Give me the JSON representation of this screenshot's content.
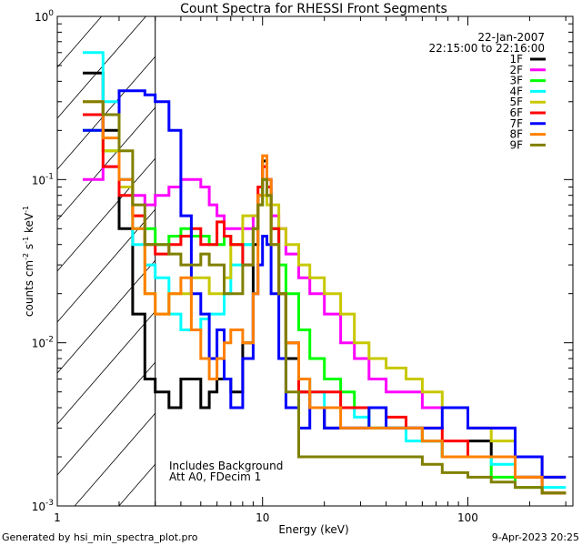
{
  "chart_data": {
    "type": "line",
    "title": "Count Spectra for RHESSI Front Segments",
    "xlabel": "Energy (keV)",
    "ylabel": "counts cm-2 s-1 keV-1",
    "ylabel_parts": {
      "base": "counts cm",
      "e1": "-2",
      "mid": " s",
      "e2": "-1",
      "mid2": " keV",
      "e3": "-1"
    },
    "xscale": "log",
    "yscale": "log",
    "xlim": [
      1,
      325
    ],
    "ylim": [
      0.001,
      1
    ],
    "x_tick_labels": [
      "1",
      "10",
      "100"
    ],
    "x_ticks": [
      1,
      10,
      100
    ],
    "y_ticks": [
      1,
      0.1,
      0.01,
      0.001
    ],
    "y_tick_labels": [
      {
        "base": "10",
        "exp": "0"
      },
      {
        "base": "10",
        "exp": "-1"
      },
      {
        "base": "10",
        "exp": "-2"
      },
      {
        "base": "10",
        "exp": "-3"
      }
    ],
    "excluded_region_keV": [
      1,
      3
    ],
    "annotations": {
      "date": "22-Jan-2007",
      "time_range": "22:15:00 to 22:16:00",
      "background_note": "Includes Background",
      "atten_note": "Att A0, FDecim 1"
    },
    "legend_placement": "top-right",
    "energy_edges": [
      1.33,
      1.67,
      2,
      2.33,
      2.67,
      3,
      3.5,
      4,
      4.5,
      5,
      5.5,
      6,
      6.5,
      7,
      8,
      9,
      9.5,
      10,
      10.5,
      11,
      12,
      13,
      15,
      17,
      20,
      24,
      28,
      33,
      40,
      50,
      60,
      75,
      100,
      130,
      170,
      230,
      300
    ],
    "series": [
      {
        "name": "1F",
        "color": "#000000",
        "values": [
          0.45,
          0.2,
          0.05,
          0.015,
          0.006,
          0.005,
          0.004,
          0.006,
          0.006,
          0.004,
          0.005,
          0.006,
          0.006,
          0.005,
          0.01,
          0.04,
          0.08,
          0.13,
          0.1,
          0.05,
          0.02,
          0.008,
          0.005,
          0.004,
          0.003,
          0.003,
          0.003,
          0.003,
          0.003,
          0.003,
          0.0025,
          0.002,
          0.0025,
          0.002,
          0.0015,
          0.0012
        ]
      },
      {
        "name": "2F",
        "color": "#ff00ff",
        "values": [
          0.1,
          0.12,
          0.1,
          0.08,
          0.07,
          0.08,
          0.09,
          0.1,
          0.1,
          0.09,
          0.07,
          0.06,
          0.05,
          0.05,
          0.05,
          0.06,
          0.08,
          0.12,
          0.1,
          0.06,
          0.05,
          0.035,
          0.025,
          0.02,
          0.015,
          0.01,
          0.008,
          0.006,
          0.005,
          0.005,
          0.004,
          0.004,
          0.003,
          0.003,
          0.002,
          0.0015
        ]
      },
      {
        "name": "3F",
        "color": "#00ff00",
        "values": [
          0.2,
          0.15,
          0.09,
          0.05,
          0.05,
          0.04,
          0.045,
          0.05,
          0.045,
          0.045,
          0.04,
          0.04,
          0.045,
          0.04,
          0.04,
          0.05,
          0.08,
          0.1,
          0.08,
          0.05,
          0.03,
          0.02,
          0.012,
          0.008,
          0.006,
          0.005,
          0.004,
          0.003,
          0.003,
          0.003,
          0.0025,
          0.002,
          0.002,
          0.0015,
          0.0013,
          0.0012
        ]
      },
      {
        "name": "4F",
        "color": "#00ffff",
        "values": [
          0.6,
          0.3,
          0.1,
          0.04,
          0.03,
          0.025,
          0.015,
          0.012,
          0.012,
          0.014,
          0.015,
          0.015,
          0.02,
          0.03,
          0.04,
          0.05,
          0.07,
          0.1,
          0.09,
          0.05,
          0.02,
          0.01,
          0.006,
          0.005,
          0.004,
          0.004,
          0.0035,
          0.003,
          0.003,
          0.0025,
          0.0025,
          0.002,
          0.002,
          0.0018,
          0.0015,
          0.0013
        ]
      },
      {
        "name": "5F",
        "color": "#c8c800",
        "values": [
          0.25,
          0.15,
          0.09,
          0.06,
          0.02,
          0.015,
          0.02,
          0.02,
          0.025,
          0.025,
          0.02,
          0.02,
          0.025,
          0.04,
          0.06,
          0.06,
          0.07,
          0.08,
          0.07,
          0.07,
          0.05,
          0.04,
          0.03,
          0.025,
          0.02,
          0.015,
          0.01,
          0.008,
          0.007,
          0.006,
          0.005,
          0.004,
          0.003,
          0.0025,
          0.002,
          0.0015
        ]
      },
      {
        "name": "6F",
        "color": "#ff0000",
        "values": [
          0.25,
          0.12,
          0.08,
          0.06,
          0.04,
          0.035,
          0.04,
          0.045,
          0.05,
          0.04,
          0.04,
          0.055,
          0.045,
          0.04,
          0.03,
          0.05,
          0.09,
          0.12,
          0.09,
          0.05,
          0.02,
          0.01,
          0.005,
          0.005,
          0.005,
          0.004,
          0.004,
          0.004,
          0.0035,
          0.003,
          0.003,
          0.0025,
          0.002,
          0.002,
          0.0015,
          0.0012
        ]
      },
      {
        "name": "7F",
        "color": "#0000ff",
        "values": [
          0.2,
          0.25,
          0.35,
          0.35,
          0.33,
          0.3,
          0.2,
          0.06,
          0.02,
          0.015,
          0.008,
          0.012,
          0.006,
          0.004,
          0.008,
          0.02,
          0.03,
          0.045,
          0.04,
          0.02,
          0.008,
          0.004,
          0.003,
          0.004,
          0.003,
          0.003,
          0.003,
          0.004,
          0.003,
          0.003,
          0.003,
          0.004,
          0.003,
          0.003,
          0.002,
          0.0015
        ]
      },
      {
        "name": "8F",
        "color": "#ff8000",
        "values": [
          0.3,
          0.18,
          0.1,
          0.05,
          0.02,
          0.015,
          0.02,
          0.025,
          0.012,
          0.008,
          0.006,
          0.008,
          0.01,
          0.012,
          0.01,
          0.02,
          0.08,
          0.14,
          0.1,
          0.04,
          0.02,
          0.01,
          0.006,
          0.004,
          0.004,
          0.003,
          0.003,
          0.003,
          0.003,
          0.003,
          0.0025,
          0.002,
          0.002,
          0.002,
          0.0015,
          0.0012
        ]
      },
      {
        "name": "9F",
        "color": "#808000",
        "values": [
          0.3,
          0.25,
          0.15,
          0.07,
          0.04,
          0.04,
          0.035,
          0.03,
          0.03,
          0.035,
          0.03,
          0.03,
          0.02,
          0.02,
          0.03,
          0.05,
          0.07,
          0.1,
          0.08,
          0.04,
          0.02,
          0.005,
          0.002,
          0.002,
          0.002,
          0.002,
          0.002,
          0.002,
          0.002,
          0.002,
          0.0018,
          0.0016,
          0.0015,
          0.0014,
          0.0013,
          0.0012
        ]
      }
    ]
  },
  "footer": {
    "generated_by": "Generated by hsi_min_spectra_plot.pro",
    "timestamp": "9-Apr-2023 20:25"
  }
}
